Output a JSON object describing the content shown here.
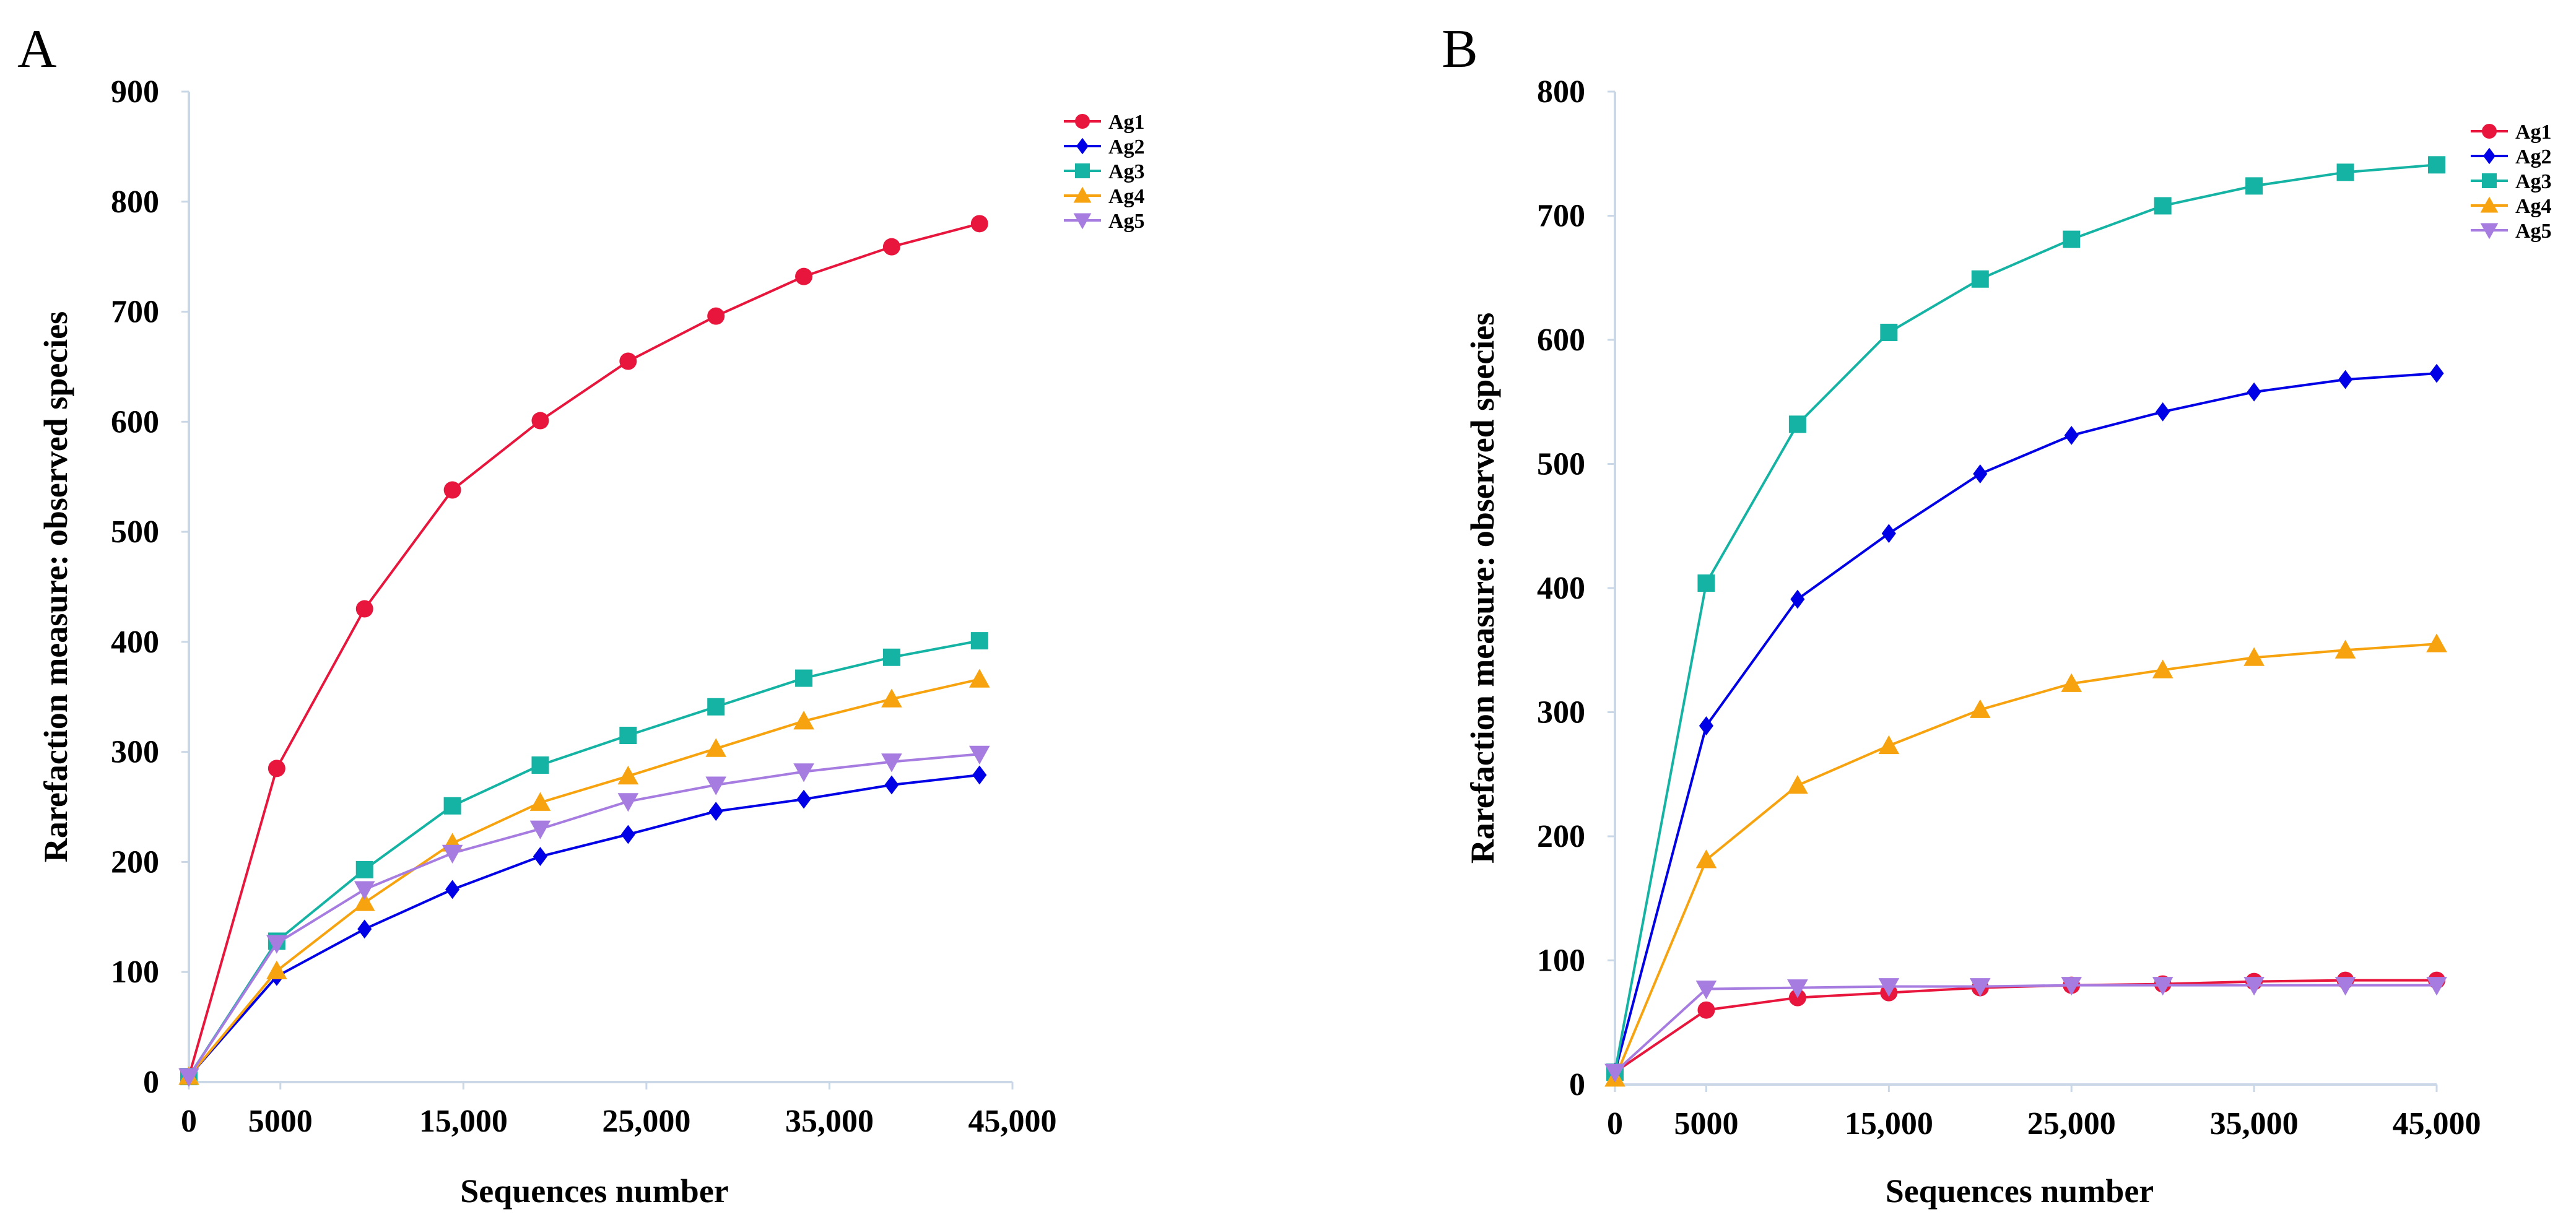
{
  "chart_data": [
    {
      "panel": "A",
      "type": "line",
      "xlabel": "Sequences number",
      "ylabel": "Rarefaction measure: observed species",
      "xlim": [
        0,
        45000
      ],
      "ylim": [
        0,
        900
      ],
      "x_ticks": [
        0,
        5000,
        15000,
        25000,
        35000,
        45000
      ],
      "x_tick_labels": [
        "0",
        "5000",
        "15,000",
        "25,000",
        "35,000",
        "45,000"
      ],
      "y_ticks": [
        0,
        100,
        200,
        300,
        400,
        500,
        600,
        700,
        800,
        900
      ],
      "y_tick_labels": [
        "0",
        "100",
        "200",
        "300",
        "400",
        "500",
        "600",
        "700",
        "800",
        "900"
      ],
      "grid": false,
      "legend_position": "top-right",
      "x": [
        0,
        4800,
        9600,
        14400,
        19200,
        24000,
        28800,
        33600,
        38400,
        43200
      ],
      "series": [
        {
          "name": "Ag1",
          "color": "#e8163c",
          "marker": "circle",
          "values": [
            5,
            285,
            430,
            538,
            601,
            655,
            696,
            732,
            759,
            780
          ]
        },
        {
          "name": "Ag2",
          "color": "#0000e6",
          "marker": "diamond",
          "values": [
            5,
            96,
            139,
            175,
            205,
            225,
            246,
            257,
            270,
            279
          ]
        },
        {
          "name": "Ag3",
          "color": "#14b3a3",
          "marker": "square",
          "values": [
            5,
            128,
            193,
            251,
            288,
            315,
            341,
            367,
            386,
            401
          ]
        },
        {
          "name": "Ag4",
          "color": "#f7a30f",
          "marker": "triangle-up",
          "values": [
            5,
            101,
            163,
            217,
            254,
            278,
            303,
            328,
            348,
            366
          ]
        },
        {
          "name": "Ag5",
          "color": "#a67ce0",
          "marker": "triangle-down",
          "values": [
            5,
            126,
            175,
            208,
            230,
            255,
            270,
            282,
            291,
            298
          ]
        }
      ]
    },
    {
      "panel": "B",
      "type": "line",
      "xlabel": "Sequences number",
      "ylabel": "Rarefaction measure: observed species",
      "xlim": [
        0,
        45000
      ],
      "ylim": [
        0,
        800
      ],
      "x_ticks": [
        0,
        5000,
        15000,
        25000,
        35000,
        45000
      ],
      "x_tick_labels": [
        "0",
        "5000",
        "15,000",
        "25,000",
        "35,000",
        "45,000"
      ],
      "y_ticks": [
        0,
        100,
        200,
        300,
        400,
        500,
        600,
        700,
        800
      ],
      "y_tick_labels": [
        "0",
        "100",
        "200",
        "300",
        "400",
        "500",
        "600",
        "700",
        "800"
      ],
      "grid": false,
      "legend_position": "top-right",
      "x": [
        0,
        5000,
        10000,
        15000,
        20000,
        25000,
        30000,
        35000,
        40000,
        45000
      ],
      "series": [
        {
          "name": "Ag1",
          "color": "#e8163c",
          "marker": "circle",
          "values": [
            10,
            60,
            70,
            74,
            78,
            80,
            81,
            83,
            84,
            84
          ]
        },
        {
          "name": "Ag2",
          "color": "#0000e6",
          "marker": "diamond",
          "values": [
            10,
            289,
            391,
            444,
            492,
            523,
            542,
            558,
            568,
            573
          ]
        },
        {
          "name": "Ag3",
          "color": "#14b3a3",
          "marker": "square",
          "values": [
            10,
            404,
            532,
            606,
            649,
            681,
            708,
            724,
            735,
            741
          ]
        },
        {
          "name": "Ag4",
          "color": "#f7a30f",
          "marker": "triangle-up",
          "values": [
            5,
            181,
            241,
            273,
            302,
            323,
            334,
            344,
            350,
            355
          ]
        },
        {
          "name": "Ag5",
          "color": "#a67ce0",
          "marker": "triangle-down",
          "values": [
            10,
            77,
            78,
            79,
            79,
            80,
            80,
            80,
            80,
            80
          ]
        }
      ]
    }
  ]
}
